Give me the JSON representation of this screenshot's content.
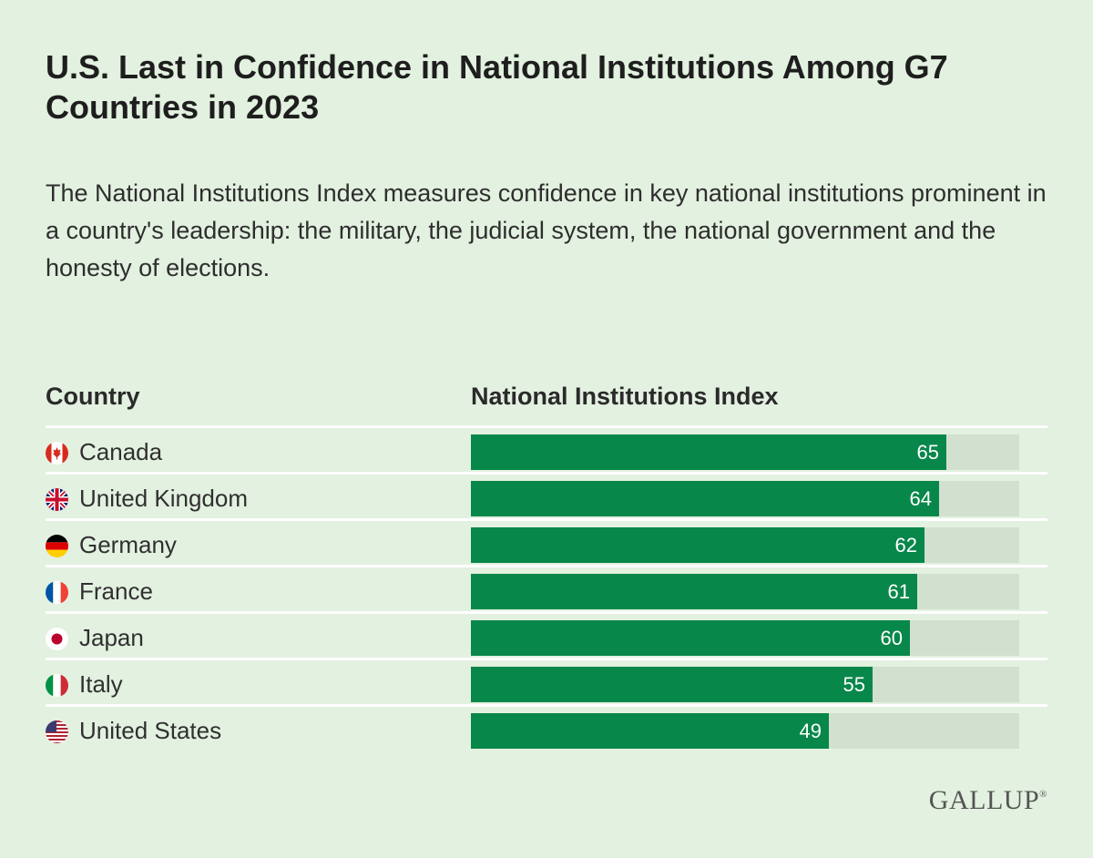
{
  "header": {
    "title": "U.S. Last in Confidence in National Institutions Among G7 Countries in 2023",
    "subtitle": "The National Institutions Index measures confidence in key national institutions prominent in a country's leadership: the military, the judicial system, the national government and the honesty of elections."
  },
  "columns": {
    "country": "Country",
    "index": "National Institutions Index"
  },
  "colors": {
    "background": "#e3f1e0",
    "bar": "#08874a",
    "track": "#d2e0cf"
  },
  "chart_data": {
    "type": "bar",
    "orientation": "horizontal",
    "title": "U.S. Last in Confidence in National Institutions Among G7 Countries in 2023",
    "xlabel": "National Institutions Index",
    "ylabel": "Country",
    "xlim": [
      0,
      75
    ],
    "grid": false,
    "categories": [
      "Canada",
      "United Kingdom",
      "Germany",
      "France",
      "Japan",
      "Italy",
      "United States"
    ],
    "values": [
      65,
      64,
      62,
      61,
      60,
      55,
      49
    ],
    "flags": [
      "canada-flag-icon",
      "uk-flag-icon",
      "germany-flag-icon",
      "france-flag-icon",
      "japan-flag-icon",
      "italy-flag-icon",
      "usa-flag-icon"
    ]
  },
  "brand": {
    "logo": "GALLUP",
    "mark": "®"
  }
}
